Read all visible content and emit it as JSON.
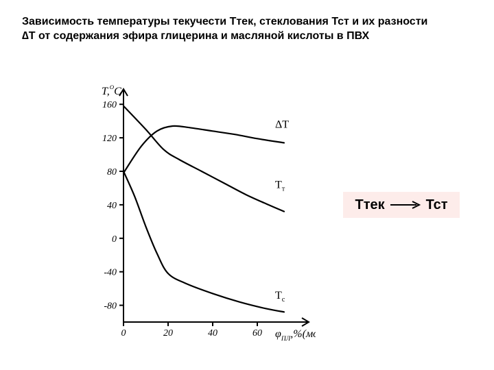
{
  "title_text": "Зависимость температуры текучести Ттек, стеклования Тст и их разности  ∆Т  от содержания эфира глицерина и масляной кислоты в ПВХ",
  "title_fontsize": 16,
  "title_fontweight": 700,
  "background_color": "#ffffff",
  "sidebox": {
    "left_label": "Ттек",
    "right_label": "Тст",
    "bg_color": "#fdecea",
    "text_color": "#000000",
    "fontsize": 20,
    "fontweight": 700,
    "arrow_color": "#000000"
  },
  "chart": {
    "type": "line",
    "background_color": "#ffffff",
    "stroke_color": "#000000",
    "line_width": 2.2,
    "axis_line_width": 2.0,
    "tick_len": 6,
    "font_family": "Times New Roman",
    "axis_label_fontsize": 16,
    "tick_fontsize": 14,
    "inchart_label_fontsize": 16,
    "y_axis_title_prefix": "T,",
    "y_axis_title_degree": "O",
    "y_axis_title_suffix": "C",
    "x_axis_title_prefix": "φ",
    "x_axis_title_sub": "ПЛ",
    "x_axis_title_suffix": ",%(мол.)",
    "xlim": [
      0,
      80
    ],
    "ylim": [
      -100,
      170
    ],
    "x_ticks": [
      0,
      20,
      40,
      60
    ],
    "x_tick_labels": [
      "0",
      "20",
      "40",
      "60"
    ],
    "y_ticks": [
      -80,
      -40,
      0,
      40,
      80,
      120,
      160
    ],
    "y_tick_labels": [
      "-80",
      "-40",
      "0",
      "40",
      "80",
      "120",
      "160"
    ],
    "arrow_head_size": 6,
    "series": {
      "deltaT": {
        "label": "ΔT",
        "label_xy": [
          68,
          132
        ],
        "points": [
          [
            0,
            78
          ],
          [
            8,
            110
          ],
          [
            15,
            128
          ],
          [
            22,
            134
          ],
          [
            30,
            132
          ],
          [
            40,
            128
          ],
          [
            50,
            124
          ],
          [
            60,
            119
          ],
          [
            72,
            114
          ]
        ]
      },
      "Ttau": {
        "label": "T",
        "label_sub": "т",
        "label_xy": [
          68,
          60
        ],
        "points": [
          [
            0,
            158
          ],
          [
            10,
            130
          ],
          [
            18,
            106
          ],
          [
            25,
            94
          ],
          [
            35,
            80
          ],
          [
            45,
            66
          ],
          [
            55,
            52
          ],
          [
            65,
            40
          ],
          [
            72,
            32
          ]
        ]
      },
      "Tc": {
        "label": "T",
        "label_sub": "c",
        "label_xy": [
          68,
          -72
        ],
        "points": [
          [
            0,
            80
          ],
          [
            5,
            50
          ],
          [
            10,
            14
          ],
          [
            15,
            -18
          ],
          [
            20,
            -42
          ],
          [
            28,
            -54
          ],
          [
            40,
            -66
          ],
          [
            52,
            -76
          ],
          [
            64,
            -84
          ],
          [
            72,
            -88
          ]
        ]
      }
    }
  }
}
